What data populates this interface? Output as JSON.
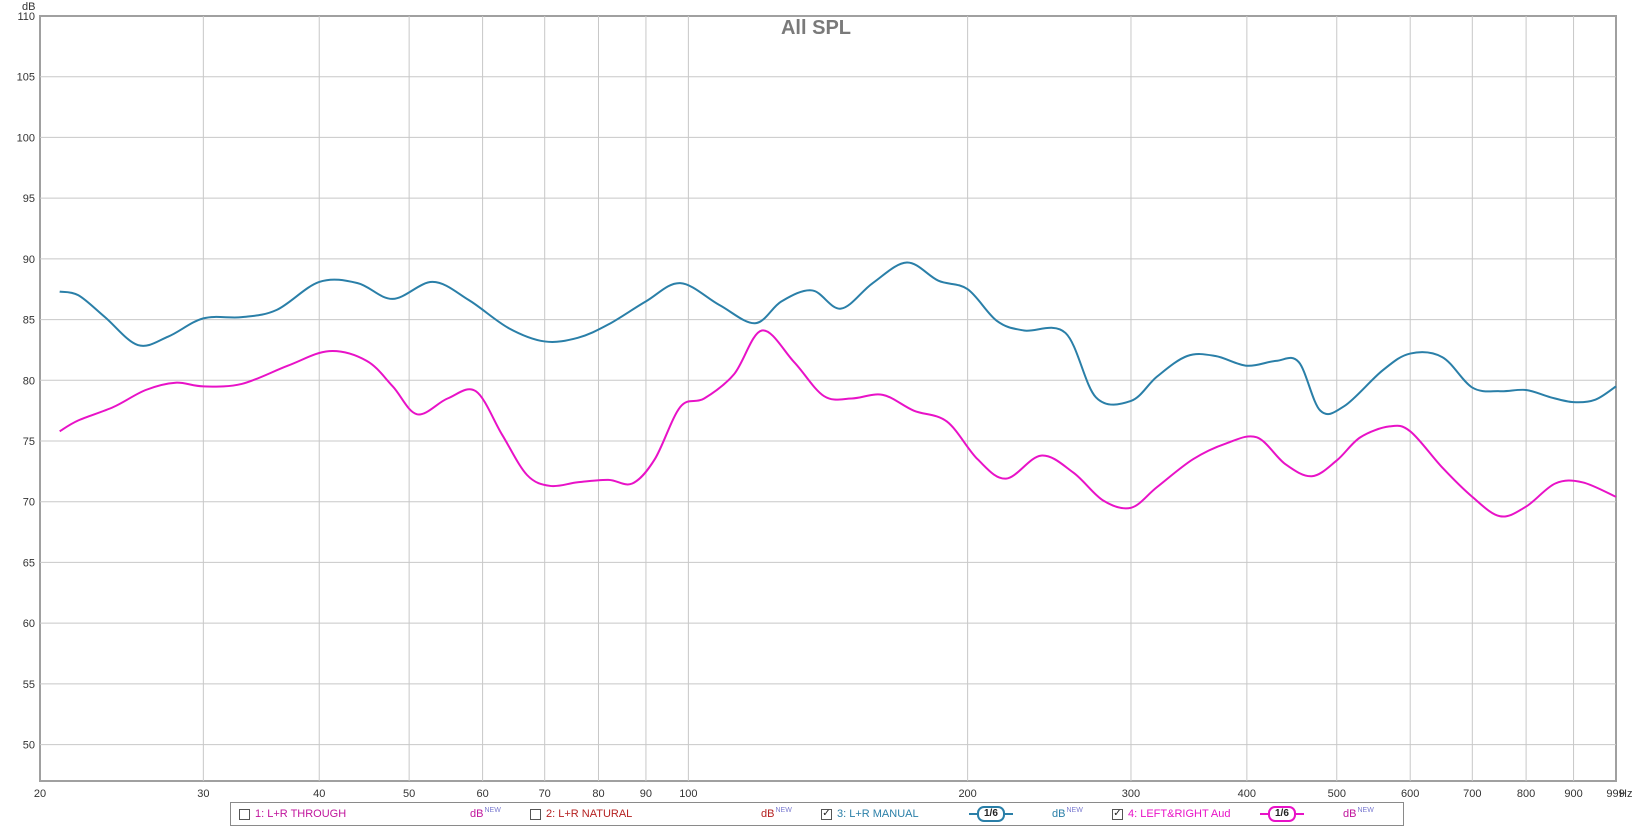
{
  "chart_data": {
    "type": "line",
    "title": "All SPL",
    "ylabel": "dB",
    "xlabel_unit": "Hz",
    "x_scale": "log",
    "xlim": [
      20,
      1000
    ],
    "ylim": [
      47,
      110
    ],
    "grid": true,
    "x_ticks": [
      {
        "value": 20,
        "label": "20"
      },
      {
        "value": 30,
        "label": "30"
      },
      {
        "value": 40,
        "label": "40"
      },
      {
        "value": 50,
        "label": "50"
      },
      {
        "value": 60,
        "label": "60"
      },
      {
        "value": 70,
        "label": "70"
      },
      {
        "value": 80,
        "label": "80"
      },
      {
        "value": 90,
        "label": "90"
      },
      {
        "value": 100,
        "label": "100"
      },
      {
        "value": 200,
        "label": "200"
      },
      {
        "value": 300,
        "label": "300"
      },
      {
        "value": 400,
        "label": "400"
      },
      {
        "value": 500,
        "label": "500"
      },
      {
        "value": 600,
        "label": "600"
      },
      {
        "value": 700,
        "label": "700"
      },
      {
        "value": 800,
        "label": "800"
      },
      {
        "value": 900,
        "label": "900"
      },
      {
        "value": 999,
        "label": "999"
      }
    ],
    "y_ticks": [
      {
        "value": 110,
        "label": "110"
      },
      {
        "value": 105,
        "label": "105"
      },
      {
        "value": 100,
        "label": "100"
      },
      {
        "value": 95,
        "label": "95"
      },
      {
        "value": 90,
        "label": "90"
      },
      {
        "value": 85,
        "label": "85"
      },
      {
        "value": 80,
        "label": "80"
      },
      {
        "value": 75,
        "label": "75"
      },
      {
        "value": 70,
        "label": "70"
      },
      {
        "value": 65,
        "label": "65"
      },
      {
        "value": 60,
        "label": "60"
      },
      {
        "value": 55,
        "label": "55"
      },
      {
        "value": 50,
        "label": "50"
      }
    ],
    "series": [
      {
        "name": "3: L+R MANUAL",
        "color": "#2a7fa8",
        "x": [
          21,
          22,
          23.5,
          25.5,
          27.5,
          30,
          33,
          36,
          40,
          44,
          48,
          53,
          58,
          64,
          70,
          76,
          82,
          90,
          98,
          108,
          118,
          126,
          136,
          146,
          158,
          172,
          186,
          200,
          215,
          230,
          255,
          275,
          300,
          320,
          345,
          370,
          400,
          430,
          455,
          480,
          510,
          560,
          600,
          650,
          700,
          750,
          800,
          850,
          900,
          950,
          1000
        ],
        "y": [
          87.3,
          87,
          85.2,
          82.9,
          83.6,
          85.1,
          85.2,
          85.8,
          88.1,
          88,
          86.7,
          88.1,
          86.6,
          84.3,
          83.2,
          83.5,
          84.6,
          86.5,
          88,
          86.2,
          84.7,
          86.5,
          87.4,
          85.9,
          88,
          89.7,
          88.2,
          87.5,
          84.9,
          84.1,
          83.9,
          78.6,
          78.3,
          80.3,
          82,
          82,
          81.2,
          81.6,
          81.5,
          77.5,
          77.9,
          80.8,
          82.2,
          81.9,
          79.4,
          79.1,
          79.2,
          78.6,
          78.2,
          78.4,
          79.5
        ]
      },
      {
        "name": "4: LEFT&RIGHT Aud",
        "color": "#e812c7",
        "x": [
          21,
          22,
          24,
          26,
          28,
          30,
          33,
          37,
          41,
          45,
          48,
          51,
          55,
          59,
          63,
          67,
          71,
          76,
          82,
          87,
          92,
          98,
          104,
          112,
          120,
          130,
          140,
          150,
          162,
          175,
          190,
          205,
          220,
          240,
          260,
          280,
          300,
          320,
          350,
          380,
          410,
          440,
          470,
          500,
          530,
          570,
          600,
          650,
          700,
          750,
          800,
          860,
          920,
          1000
        ],
        "y": [
          75.8,
          76.7,
          77.8,
          79.2,
          79.8,
          79.5,
          79.7,
          81.2,
          82.4,
          81.6,
          79.5,
          77.2,
          78.5,
          79.1,
          75.5,
          72.2,
          71.3,
          71.6,
          71.8,
          71.5,
          73.5,
          77.8,
          78.5,
          80.5,
          84.1,
          81.5,
          78.7,
          78.5,
          78.8,
          77.5,
          76.6,
          73.5,
          71.9,
          73.8,
          72.4,
          70.1,
          69.5,
          71.2,
          73.5,
          74.8,
          75.3,
          73.1,
          72.1,
          73.4,
          75.3,
          76.2,
          75.8,
          72.8,
          70.4,
          68.8,
          69.6,
          71.5,
          71.6,
          70.4
        ]
      }
    ]
  },
  "legend": {
    "items": [
      {
        "label": "1: L+R THROUGH",
        "checked": false,
        "color": "#c0149c",
        "db_color": "#c0149c",
        "smoothing": ""
      },
      {
        "label": "2: L+R NATURAL",
        "checked": false,
        "color": "#b52020",
        "db_color": "#b52020",
        "smoothing": ""
      },
      {
        "label": "3: L+R MANUAL",
        "checked": true,
        "color": "#2a7fa8",
        "db_color": "#2a7fa8",
        "smoothing": "1/6"
      },
      {
        "label": "4: LEFT&RIGHT Aud",
        "checked": true,
        "color": "#e812c7",
        "db_color": "#c0149c",
        "smoothing": "1/6"
      }
    ],
    "db_text": "dB",
    "db_sup": "NEW"
  }
}
